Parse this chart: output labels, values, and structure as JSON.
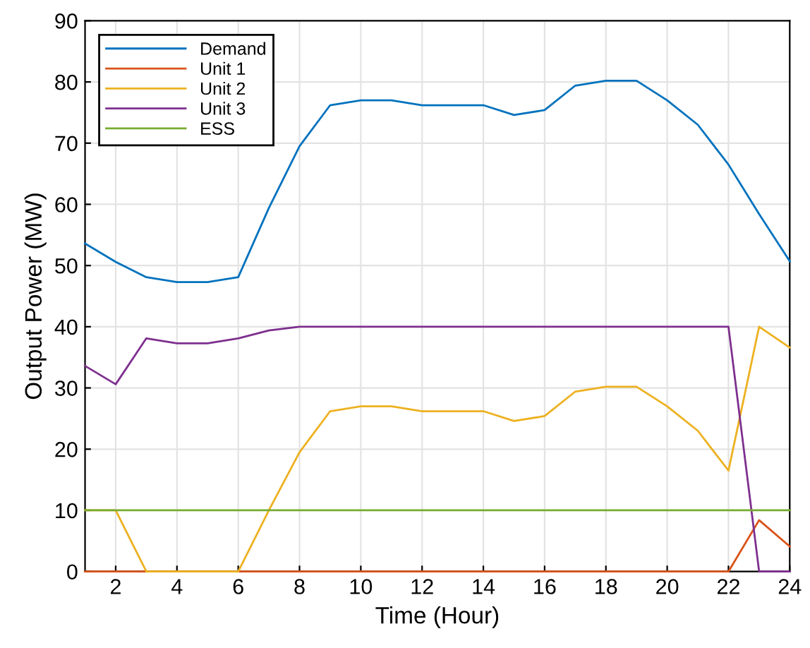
{
  "chart_data": {
    "type": "line",
    "xlabel": "Time (Hour)",
    "ylabel": "Output Power (MW)",
    "x": [
      1,
      2,
      3,
      4,
      5,
      6,
      7,
      8,
      9,
      10,
      11,
      12,
      13,
      14,
      15,
      16,
      17,
      18,
      19,
      20,
      21,
      22,
      23,
      24
    ],
    "series": [
      {
        "name": "Demand",
        "color": "#0072bd",
        "values": [
          53.6,
          50.6,
          48.1,
          47.3,
          47.3,
          48.1,
          59.4,
          69.5,
          76.2,
          77,
          77,
          76.2,
          76.2,
          76.2,
          74.6,
          75.4,
          79.4,
          80.2,
          80.2,
          77,
          73,
          66.5,
          58.4,
          50.7
        ]
      },
      {
        "name": "Unit 1",
        "color": "#d95319",
        "values": [
          0,
          0,
          0,
          0,
          0,
          0,
          0,
          0,
          0,
          0,
          0,
          0,
          0,
          0,
          0,
          0,
          0,
          0,
          0,
          0,
          0,
          0,
          8.4,
          4.1
        ]
      },
      {
        "name": "Unit 2",
        "color": "#edb120",
        "values": [
          10,
          10,
          0,
          0,
          0,
          0,
          10,
          19.5,
          26.2,
          27,
          27,
          26.2,
          26.2,
          26.2,
          24.6,
          25.4,
          29.4,
          30.2,
          30.2,
          27,
          23,
          16.5,
          40,
          36.6
        ]
      },
      {
        "name": "Unit 3",
        "color": "#7e2f8e",
        "values": [
          33.6,
          30.6,
          38.1,
          37.3,
          37.3,
          38.1,
          39.4,
          40,
          40,
          40,
          40,
          40,
          40,
          40,
          40,
          40,
          40,
          40,
          40,
          40,
          40,
          40,
          0,
          0
        ]
      },
      {
        "name": "ESS",
        "color": "#77ac30",
        "values": [
          10,
          10,
          10,
          10,
          10,
          10,
          10,
          10,
          10,
          10,
          10,
          10,
          10,
          10,
          10,
          10,
          10,
          10,
          10,
          10,
          10,
          10,
          10,
          10
        ]
      }
    ],
    "xlim": [
      1,
      24
    ],
    "xticks": [
      2,
      4,
      6,
      8,
      10,
      12,
      14,
      16,
      18,
      20,
      22,
      24
    ],
    "ylim": [
      0,
      90
    ],
    "yticks": [
      0,
      10,
      20,
      30,
      40,
      50,
      60,
      70,
      80,
      90
    ],
    "grid": true,
    "legend": "top left"
  }
}
